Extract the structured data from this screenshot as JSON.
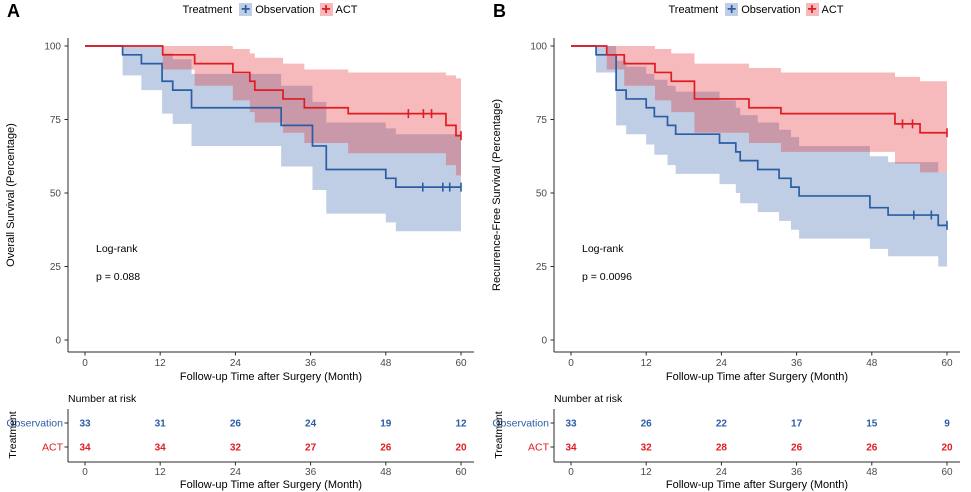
{
  "figure": {
    "background": "#ffffff"
  },
  "legend": {
    "title": "Treatment",
    "items": [
      {
        "label": "Observation",
        "key": "observation"
      },
      {
        "label": "ACT",
        "key": "act"
      }
    ]
  },
  "colors": {
    "observation": "#2B5DA4",
    "act": "#E01B22",
    "band_alpha": 0.3,
    "axis_line": "#2b2b2b",
    "tick_text": "#4a4a4a",
    "title_text": "#000000"
  },
  "chart_data": [
    {
      "type": "line",
      "subtype": "kaplan-meier-step",
      "panel_label": "A",
      "xlabel": "Follow-up Time after Surgery (Month)",
      "ylabel": "Overall Survival (Percentage)",
      "xlim": [
        0,
        60
      ],
      "ylim": [
        0,
        100
      ],
      "xticks": [
        0,
        12,
        24,
        36,
        48,
        60
      ],
      "yticks": [
        0,
        25,
        50,
        75,
        100
      ],
      "grid": false,
      "annotation": [
        "Log-rank",
        "p = 0.088"
      ],
      "series": [
        {
          "name": "Observation",
          "color_key": "observation",
          "steps": [
            [
              0,
              100,
              100,
              100
            ],
            [
              6,
              97,
              90,
              100
            ],
            [
              9,
              94,
              85,
              100
            ],
            [
              12.3,
              88,
              77,
              97.5
            ],
            [
              14,
              85,
              73.5,
              95.5
            ],
            [
              17,
              79,
              66,
              90.5
            ],
            [
              31.3,
              73,
              59,
              86.5
            ],
            [
              36.3,
              66,
              51,
              81
            ],
            [
              38.5,
              58,
              43,
              74
            ],
            [
              48,
              55,
              40,
              72
            ],
            [
              49.6,
              52,
              37,
              70
            ]
          ],
          "censor_times": [
            53.9,
            57.1,
            58.2,
            60
          ],
          "end_time": 60
        },
        {
          "name": "ACT",
          "color_key": "act",
          "steps": [
            [
              0,
              100,
              100,
              100
            ],
            [
              12.4,
              97,
              92,
              100
            ],
            [
              17.5,
              94,
              86.5,
              100
            ],
            [
              23.6,
              91,
              81.5,
              99
            ],
            [
              26.3,
              88,
              77.5,
              97.5
            ],
            [
              27.1,
              85,
              74,
              96
            ],
            [
              31.6,
              82,
              70.5,
              94
            ],
            [
              35,
              79,
              67,
              92
            ],
            [
              42,
              77,
              63.5,
              91
            ],
            [
              57.6,
              73,
              59.5,
              90
            ],
            [
              59.2,
              69.5,
              56,
              89
            ]
          ],
          "censor_times": [
            51.6,
            54,
            55.3,
            60
          ],
          "end_time": 60
        }
      ],
      "number_at_risk": {
        "title": "Number at risk",
        "axis_title": "Treatment",
        "times": [
          0,
          12,
          24,
          36,
          48,
          60
        ],
        "rows": [
          {
            "name": "Observation",
            "color_key": "observation",
            "counts": [
              33,
              31,
              26,
              24,
              19,
              12
            ]
          },
          {
            "name": "ACT",
            "color_key": "act",
            "counts": [
              34,
              34,
              32,
              27,
              26,
              20
            ]
          }
        ]
      }
    },
    {
      "type": "line",
      "subtype": "kaplan-meier-step",
      "panel_label": "B",
      "xlabel": "Follow-up Time after Surgery (Month)",
      "ylabel": "Recurrence-Free Survival (Percentage)",
      "xlim": [
        0,
        60
      ],
      "ylim": [
        0,
        100
      ],
      "xticks": [
        0,
        12,
        24,
        36,
        48,
        60
      ],
      "yticks": [
        0,
        25,
        50,
        75,
        100
      ],
      "grid": false,
      "annotation": [
        "Log-rank",
        "p = 0.0096"
      ],
      "series": [
        {
          "name": "Observation",
          "color_key": "observation",
          "steps": [
            [
              0,
              100,
              100,
              100
            ],
            [
              4,
              97,
              91,
              100
            ],
            [
              7.2,
              85,
              73,
              95
            ],
            [
              8.8,
              82,
              70,
              93
            ],
            [
              12,
              79,
              66.5,
              90.5
            ],
            [
              13.3,
              76,
              63,
              88.5
            ],
            [
              15.4,
              73,
              59.5,
              86.5
            ],
            [
              16.7,
              70,
              56.5,
              84.5
            ],
            [
              23.7,
              67,
              53,
              81.5
            ],
            [
              26.3,
              64,
              50,
              79
            ],
            [
              27,
              61,
              46.5,
              76.5
            ],
            [
              29.8,
              58,
              43.5,
              74
            ],
            [
              33.2,
              55,
              40.5,
              71.5
            ],
            [
              35.1,
              52,
              37.5,
              69
            ],
            [
              36.4,
              49,
              34.5,
              66
            ],
            [
              47.7,
              45,
              31,
              62.5
            ],
            [
              50.6,
              42.5,
              28.5,
              60.5
            ],
            [
              58.6,
              39,
              25,
              57
            ]
          ],
          "censor_times": [
            54.7,
            57.5,
            60
          ],
          "end_time": 60
        },
        {
          "name": "ACT",
          "color_key": "act",
          "steps": [
            [
              0,
              100,
              100,
              100
            ],
            [
              5.7,
              97,
              92,
              100
            ],
            [
              8.5,
              94,
              86.5,
              100
            ],
            [
              13.4,
              91,
              81.5,
              99
            ],
            [
              16,
              88,
              77.5,
              97.5
            ],
            [
              19.7,
              82,
              70.5,
              94
            ],
            [
              28.4,
              79,
              67,
              92.5
            ],
            [
              33.5,
              77,
              64,
              91
            ],
            [
              51.7,
              73.5,
              60,
              89.5
            ],
            [
              55.7,
              70.5,
              57,
              88
            ]
          ],
          "censor_times": [
            52.9,
            54.5,
            60
          ],
          "end_time": 60
        }
      ],
      "number_at_risk": {
        "title": "Number at risk",
        "axis_title": "Treatment",
        "times": [
          0,
          12,
          24,
          36,
          48,
          60
        ],
        "rows": [
          {
            "name": "Observation",
            "color_key": "observation",
            "counts": [
              33,
              26,
              22,
              17,
              15,
              9
            ]
          },
          {
            "name": "ACT",
            "color_key": "act",
            "counts": [
              34,
              32,
              28,
              26,
              26,
              20
            ]
          }
        ]
      }
    }
  ]
}
